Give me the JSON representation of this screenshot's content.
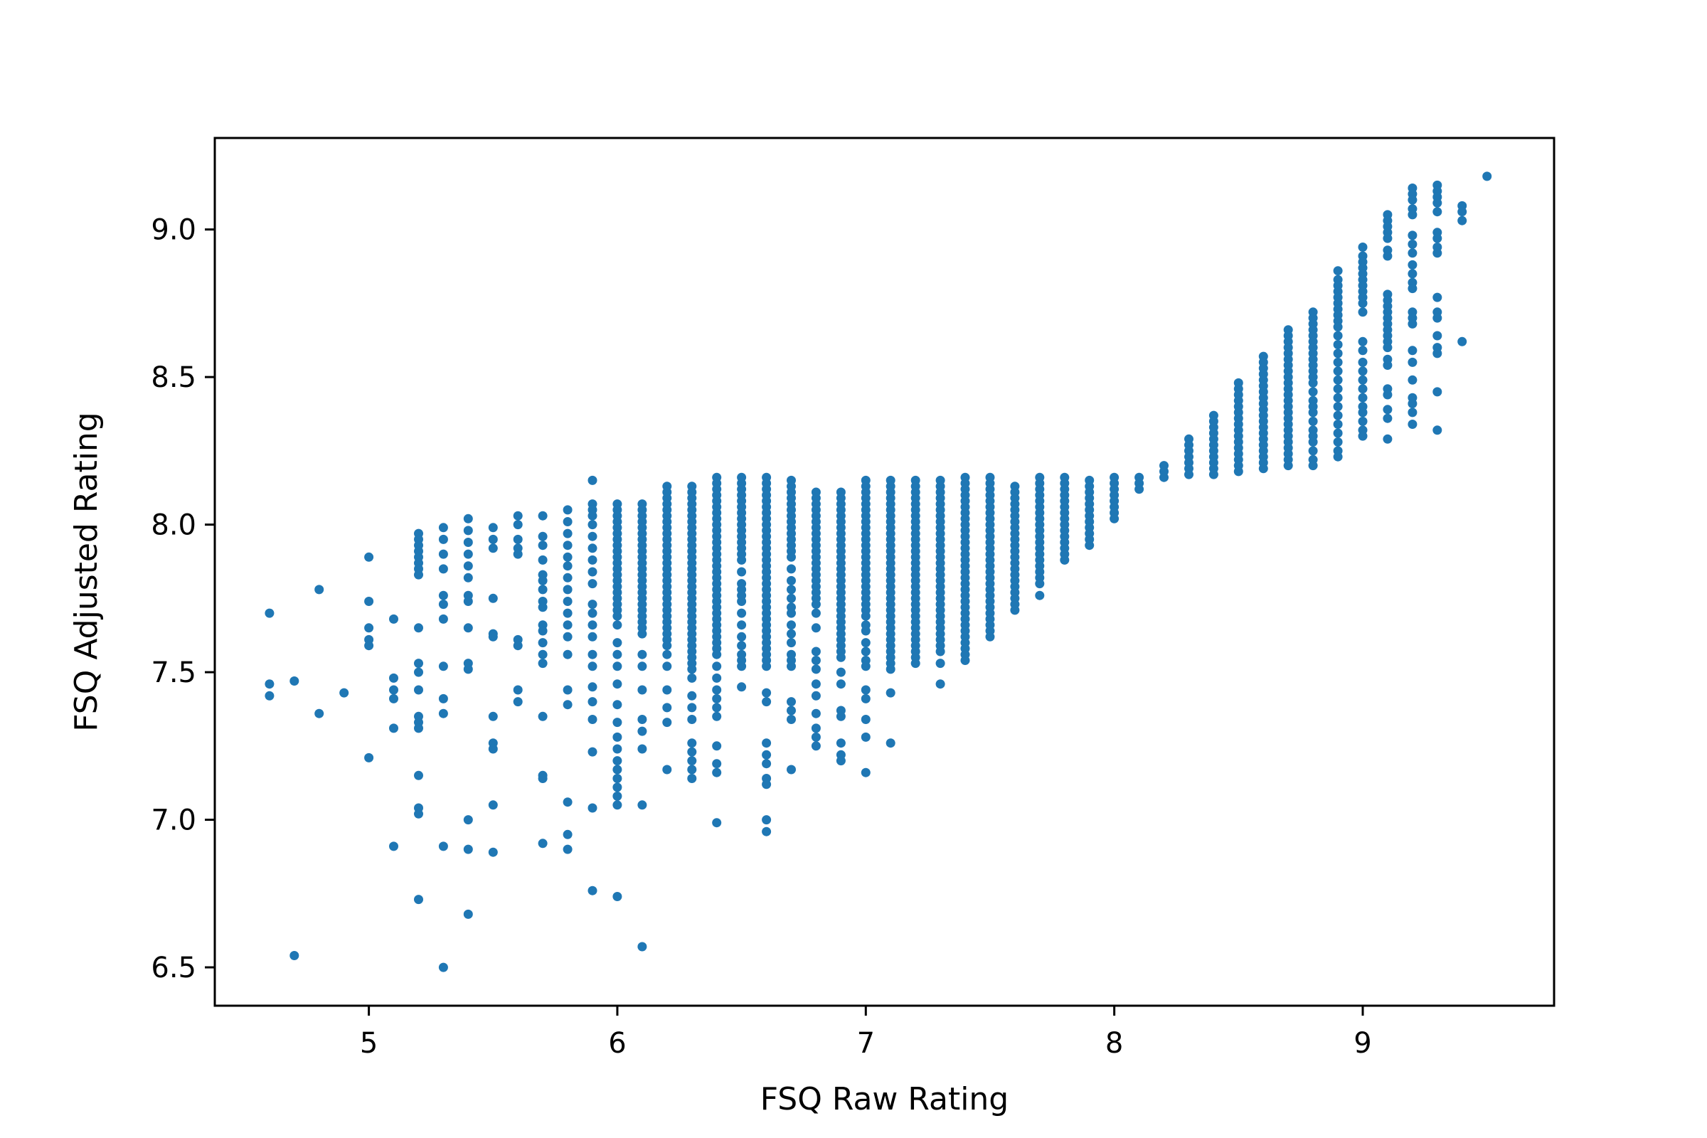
{
  "chart_data": {
    "type": "scatter",
    "title": "",
    "xlabel": "FSQ Raw Rating",
    "ylabel": "FSQ Adjusted Rating",
    "xlim": [
      4.38,
      9.77
    ],
    "ylim": [
      6.37,
      9.31
    ],
    "xticks": [
      5,
      6,
      7,
      8,
      9
    ],
    "xtick_labels": [
      "5",
      "6",
      "7",
      "8",
      "9"
    ],
    "yticks": [
      6.5,
      7.0,
      7.5,
      8.0,
      8.5,
      9.0
    ],
    "ytick_labels": [
      "6.5",
      "7.0",
      "7.5",
      "8.0",
      "8.5",
      "9.0"
    ],
    "grid": false,
    "legend": "none",
    "marker_color": "#1f77b4",
    "columns": [
      {
        "x": 4.6,
        "y": [
          7.7,
          7.46,
          7.42
        ]
      },
      {
        "x": 4.7,
        "y": [
          7.47,
          6.54
        ]
      },
      {
        "x": 4.8,
        "y": [
          7.78,
          7.36
        ]
      },
      {
        "x": 4.9,
        "y": [
          7.43
        ]
      },
      {
        "x": 5.0,
        "y": [
          7.89,
          7.74,
          7.65,
          7.61,
          7.59,
          7.21
        ]
      },
      {
        "x": 5.1,
        "y": [
          7.68,
          7.48,
          7.44,
          7.41,
          7.31,
          6.91
        ]
      },
      {
        "x": 5.2,
        "y": [
          7.97,
          7.95,
          7.93,
          7.91,
          7.89,
          7.87,
          7.85,
          7.83,
          7.65,
          7.53,
          7.5,
          7.44,
          7.35,
          7.33,
          7.31,
          7.15,
          7.04,
          7.02,
          6.73
        ]
      },
      {
        "x": 5.3,
        "y": [
          7.99,
          7.95,
          7.9,
          7.85,
          7.76,
          7.73,
          7.68,
          7.52,
          7.41,
          7.36,
          6.91,
          6.5
        ]
      },
      {
        "x": 5.4,
        "y": [
          8.02,
          7.98,
          7.94,
          7.9,
          7.86,
          7.82,
          7.76,
          7.74,
          7.65,
          7.53,
          7.51,
          7.0,
          6.9,
          6.68
        ]
      },
      {
        "x": 5.5,
        "y": [
          7.99,
          7.95,
          7.92,
          7.75,
          7.63,
          7.62,
          7.35,
          7.26,
          7.24,
          7.05,
          6.89
        ]
      },
      {
        "x": 5.6,
        "y": [
          8.03,
          8.0,
          7.95,
          7.92,
          7.9,
          7.61,
          7.59,
          7.44,
          7.4
        ]
      },
      {
        "x": 5.7,
        "y": [
          8.03,
          7.96,
          7.93,
          7.88,
          7.83,
          7.81,
          7.78,
          7.74,
          7.72,
          7.66,
          7.64,
          7.6,
          7.56,
          7.53,
          7.35,
          7.15,
          7.14,
          6.92
        ]
      },
      {
        "x": 5.8,
        "y": [
          8.05,
          8.01,
          7.97,
          7.93,
          7.89,
          7.86,
          7.82,
          7.78,
          7.74,
          7.7,
          7.66,
          7.62,
          7.56,
          7.44,
          7.39,
          7.06,
          6.95,
          6.9
        ]
      },
      {
        "x": 5.9,
        "y": [
          8.15,
          8.07,
          8.05,
          8.03,
          8.0,
          7.96,
          7.92,
          7.88,
          7.84,
          7.8,
          7.73,
          7.7,
          7.66,
          7.62,
          7.56,
          7.52,
          7.45,
          7.4,
          7.34,
          7.23,
          7.04,
          6.76
        ]
      },
      {
        "x": 6.0,
        "y": [
          8.07,
          8.05,
          8.03,
          8.01,
          7.99,
          7.97,
          7.95,
          7.93,
          7.91,
          7.89,
          7.87,
          7.85,
          7.83,
          7.81,
          7.79,
          7.77,
          7.75,
          7.73,
          7.71,
          7.69,
          7.66,
          7.6,
          7.56,
          7.52,
          7.46,
          7.39,
          7.33,
          7.28,
          7.24,
          7.2,
          7.17,
          7.14,
          7.11,
          7.08,
          7.05,
          6.74
        ]
      },
      {
        "x": 6.1,
        "y": [
          8.07,
          8.05,
          8.03,
          8.01,
          7.99,
          7.97,
          7.95,
          7.93,
          7.91,
          7.89,
          7.87,
          7.85,
          7.83,
          7.81,
          7.79,
          7.77,
          7.75,
          7.73,
          7.71,
          7.69,
          7.67,
          7.65,
          7.63,
          7.56,
          7.52,
          7.44,
          7.34,
          7.3,
          7.24,
          7.05,
          6.57
        ]
      },
      {
        "x": 6.2,
        "y": [
          8.13,
          8.11,
          8.09,
          8.07,
          8.05,
          8.03,
          8.01,
          7.99,
          7.97,
          7.95,
          7.93,
          7.91,
          7.89,
          7.87,
          7.85,
          7.83,
          7.81,
          7.79,
          7.77,
          7.75,
          7.73,
          7.71,
          7.69,
          7.67,
          7.65,
          7.63,
          7.61,
          7.59,
          7.56,
          7.52,
          7.44,
          7.38,
          7.33,
          7.17
        ]
      },
      {
        "x": 6.3,
        "y": [
          8.13,
          8.11,
          8.09,
          8.07,
          8.05,
          8.03,
          8.01,
          7.99,
          7.97,
          7.95,
          7.93,
          7.91,
          7.89,
          7.87,
          7.85,
          7.83,
          7.81,
          7.79,
          7.77,
          7.75,
          7.73,
          7.71,
          7.69,
          7.67,
          7.65,
          7.63,
          7.61,
          7.59,
          7.57,
          7.55,
          7.53,
          7.51,
          7.48,
          7.42,
          7.38,
          7.34,
          7.26,
          7.23,
          7.2,
          7.17,
          7.14
        ]
      },
      {
        "x": 6.4,
        "y": [
          8.16,
          8.14,
          8.12,
          8.1,
          8.08,
          8.06,
          8.04,
          8.02,
          8.0,
          7.98,
          7.96,
          7.94,
          7.92,
          7.9,
          7.88,
          7.86,
          7.84,
          7.82,
          7.8,
          7.78,
          7.76,
          7.74,
          7.72,
          7.7,
          7.68,
          7.66,
          7.64,
          7.62,
          7.6,
          7.58,
          7.56,
          7.52,
          7.48,
          7.44,
          7.41,
          7.38,
          7.35,
          7.25,
          7.19,
          7.16,
          6.99
        ]
      },
      {
        "x": 6.5,
        "y": [
          8.16,
          8.14,
          8.12,
          8.1,
          8.08,
          8.06,
          8.04,
          8.02,
          8.0,
          7.98,
          7.96,
          7.94,
          7.92,
          7.9,
          7.88,
          7.84,
          7.8,
          7.78,
          7.76,
          7.74,
          7.7,
          7.66,
          7.62,
          7.59,
          7.56,
          7.54,
          7.52,
          7.45
        ]
      },
      {
        "x": 6.6,
        "y": [
          8.16,
          8.14,
          8.12,
          8.1,
          8.08,
          8.06,
          8.04,
          8.02,
          8.0,
          7.98,
          7.96,
          7.94,
          7.92,
          7.9,
          7.88,
          7.86,
          7.84,
          7.82,
          7.8,
          7.78,
          7.76,
          7.74,
          7.72,
          7.7,
          7.68,
          7.66,
          7.64,
          7.62,
          7.6,
          7.58,
          7.56,
          7.54,
          7.52,
          7.43,
          7.4,
          7.26,
          7.22,
          7.19,
          7.14,
          7.12,
          7.0,
          6.96
        ]
      },
      {
        "x": 6.7,
        "y": [
          8.15,
          8.13,
          8.11,
          8.09,
          8.07,
          8.05,
          8.03,
          8.01,
          7.99,
          7.97,
          7.95,
          7.93,
          7.91,
          7.89,
          7.85,
          7.81,
          7.78,
          7.75,
          7.72,
          7.7,
          7.66,
          7.63,
          7.6,
          7.56,
          7.54,
          7.52,
          7.4,
          7.37,
          7.34,
          7.17
        ]
      },
      {
        "x": 6.8,
        "y": [
          8.11,
          8.09,
          8.07,
          8.05,
          8.03,
          8.01,
          7.99,
          7.97,
          7.95,
          7.93,
          7.91,
          7.89,
          7.87,
          7.85,
          7.83,
          7.81,
          7.79,
          7.77,
          7.75,
          7.73,
          7.7,
          7.65,
          7.57,
          7.54,
          7.51,
          7.46,
          7.42,
          7.36,
          7.31,
          7.28,
          7.25
        ]
      },
      {
        "x": 6.9,
        "y": [
          8.11,
          8.09,
          8.07,
          8.05,
          8.03,
          8.01,
          7.99,
          7.97,
          7.95,
          7.93,
          7.91,
          7.89,
          7.87,
          7.85,
          7.83,
          7.81,
          7.79,
          7.77,
          7.75,
          7.73,
          7.71,
          7.69,
          7.67,
          7.65,
          7.63,
          7.61,
          7.59,
          7.57,
          7.55,
          7.5,
          7.46,
          7.37,
          7.35,
          7.26,
          7.22,
          7.2
        ]
      },
      {
        "x": 7.0,
        "y": [
          8.15,
          8.13,
          8.11,
          8.09,
          8.07,
          8.05,
          8.03,
          8.01,
          7.99,
          7.97,
          7.95,
          7.93,
          7.91,
          7.89,
          7.87,
          7.85,
          7.83,
          7.81,
          7.79,
          7.77,
          7.75,
          7.73,
          7.71,
          7.69,
          7.66,
          7.64,
          7.6,
          7.57,
          7.54,
          7.52,
          7.44,
          7.41,
          7.34,
          7.28,
          7.16
        ]
      },
      {
        "x": 7.1,
        "y": [
          8.15,
          8.13,
          8.11,
          8.09,
          8.07,
          8.05,
          8.03,
          8.01,
          7.99,
          7.97,
          7.95,
          7.93,
          7.91,
          7.89,
          7.87,
          7.85,
          7.83,
          7.81,
          7.79,
          7.77,
          7.75,
          7.73,
          7.71,
          7.69,
          7.67,
          7.65,
          7.63,
          7.61,
          7.59,
          7.57,
          7.55,
          7.53,
          7.51,
          7.43,
          7.26
        ]
      },
      {
        "x": 7.2,
        "y": [
          8.15,
          8.13,
          8.11,
          8.09,
          8.07,
          8.05,
          8.03,
          8.01,
          7.99,
          7.97,
          7.95,
          7.93,
          7.91,
          7.89,
          7.87,
          7.85,
          7.83,
          7.81,
          7.79,
          7.77,
          7.75,
          7.73,
          7.71,
          7.69,
          7.67,
          7.65,
          7.63,
          7.61,
          7.59,
          7.57,
          7.55,
          7.53
        ]
      },
      {
        "x": 7.3,
        "y": [
          8.15,
          8.13,
          8.11,
          8.09,
          8.07,
          8.05,
          8.03,
          8.01,
          7.99,
          7.97,
          7.95,
          7.93,
          7.91,
          7.89,
          7.87,
          7.85,
          7.83,
          7.81,
          7.79,
          7.77,
          7.75,
          7.73,
          7.71,
          7.69,
          7.67,
          7.65,
          7.63,
          7.61,
          7.59,
          7.57,
          7.53,
          7.46
        ]
      },
      {
        "x": 7.4,
        "y": [
          8.16,
          8.14,
          8.12,
          8.1,
          8.08,
          8.06,
          8.04,
          8.02,
          8.0,
          7.98,
          7.96,
          7.94,
          7.92,
          7.9,
          7.88,
          7.86,
          7.84,
          7.82,
          7.8,
          7.78,
          7.76,
          7.74,
          7.72,
          7.7,
          7.68,
          7.66,
          7.64,
          7.62,
          7.6,
          7.58,
          7.56,
          7.54
        ]
      },
      {
        "x": 7.5,
        "y": [
          8.16,
          8.14,
          8.12,
          8.1,
          8.08,
          8.06,
          8.04,
          8.02,
          8.0,
          7.98,
          7.96,
          7.94,
          7.92,
          7.9,
          7.88,
          7.86,
          7.84,
          7.82,
          7.8,
          7.78,
          7.76,
          7.74,
          7.72,
          7.7,
          7.68,
          7.66,
          7.64,
          7.62
        ]
      },
      {
        "x": 7.6,
        "y": [
          8.13,
          8.11,
          8.09,
          8.07,
          8.05,
          8.03,
          8.01,
          7.99,
          7.97,
          7.95,
          7.93,
          7.91,
          7.89,
          7.87,
          7.85,
          7.83,
          7.81,
          7.79,
          7.77,
          7.75,
          7.73,
          7.71
        ]
      },
      {
        "x": 7.7,
        "y": [
          8.16,
          8.14,
          8.12,
          8.1,
          8.08,
          8.06,
          8.04,
          8.02,
          8.0,
          7.98,
          7.96,
          7.94,
          7.92,
          7.9,
          7.88,
          7.86,
          7.84,
          7.82,
          7.8,
          7.76
        ]
      },
      {
        "x": 7.8,
        "y": [
          8.16,
          8.14,
          8.12,
          8.1,
          8.08,
          8.06,
          8.04,
          8.02,
          8.0,
          7.98,
          7.96,
          7.94,
          7.92,
          7.9,
          7.88
        ]
      },
      {
        "x": 7.9,
        "y": [
          8.15,
          8.13,
          8.11,
          8.09,
          8.07,
          8.05,
          8.03,
          8.01,
          7.99,
          7.97,
          7.95,
          7.93
        ]
      },
      {
        "x": 8.0,
        "y": [
          8.16,
          8.14,
          8.12,
          8.1,
          8.08,
          8.06,
          8.04,
          8.02
        ]
      },
      {
        "x": 8.1,
        "y": [
          8.16,
          8.14,
          8.12
        ]
      },
      {
        "x": 8.2,
        "y": [
          8.2,
          8.18,
          8.16
        ]
      },
      {
        "x": 8.3,
        "y": [
          8.29,
          8.27,
          8.25,
          8.23,
          8.21,
          8.19,
          8.17
        ]
      },
      {
        "x": 8.4,
        "y": [
          8.37,
          8.35,
          8.33,
          8.31,
          8.29,
          8.27,
          8.25,
          8.23,
          8.21,
          8.19,
          8.17
        ]
      },
      {
        "x": 8.5,
        "y": [
          8.48,
          8.46,
          8.44,
          8.42,
          8.4,
          8.38,
          8.36,
          8.34,
          8.32,
          8.3,
          8.28,
          8.26,
          8.24,
          8.22,
          8.2,
          8.18
        ]
      },
      {
        "x": 8.6,
        "y": [
          8.57,
          8.55,
          8.53,
          8.51,
          8.49,
          8.47,
          8.45,
          8.43,
          8.41,
          8.39,
          8.37,
          8.35,
          8.33,
          8.31,
          8.29,
          8.27,
          8.25,
          8.23,
          8.21,
          8.19
        ]
      },
      {
        "x": 8.7,
        "y": [
          8.66,
          8.64,
          8.62,
          8.6,
          8.58,
          8.56,
          8.54,
          8.52,
          8.5,
          8.48,
          8.46,
          8.44,
          8.42,
          8.4,
          8.38,
          8.36,
          8.34,
          8.32,
          8.3,
          8.28,
          8.26,
          8.24,
          8.22,
          8.2
        ]
      },
      {
        "x": 8.8,
        "y": [
          8.72,
          8.7,
          8.68,
          8.66,
          8.64,
          8.62,
          8.6,
          8.58,
          8.56,
          8.54,
          8.52,
          8.5,
          8.48,
          8.45,
          8.42,
          8.4,
          8.38,
          8.35,
          8.32,
          8.3,
          8.28,
          8.25,
          8.22,
          8.2
        ]
      },
      {
        "x": 8.9,
        "y": [
          8.86,
          8.83,
          8.81,
          8.79,
          8.77,
          8.75,
          8.73,
          8.71,
          8.69,
          8.67,
          8.64,
          8.61,
          8.58,
          8.55,
          8.52,
          8.49,
          8.46,
          8.43,
          8.4,
          8.37,
          8.34,
          8.31,
          8.28,
          8.25,
          8.23
        ]
      },
      {
        "x": 9.0,
        "y": [
          8.94,
          8.91,
          8.89,
          8.87,
          8.85,
          8.83,
          8.81,
          8.79,
          8.77,
          8.75,
          8.72,
          8.62,
          8.59,
          8.55,
          8.52,
          8.49,
          8.46,
          8.43,
          8.4,
          8.38,
          8.35,
          8.32,
          8.3
        ]
      },
      {
        "x": 9.1,
        "y": [
          9.05,
          9.03,
          9.01,
          8.99,
          8.97,
          8.93,
          8.91,
          8.78,
          8.76,
          8.74,
          8.72,
          8.7,
          8.68,
          8.66,
          8.64,
          8.62,
          8.6,
          8.56,
          8.54,
          8.46,
          8.44,
          8.39,
          8.36,
          8.29
        ]
      },
      {
        "x": 9.2,
        "y": [
          9.14,
          9.12,
          9.1,
          9.07,
          9.05,
          8.98,
          8.95,
          8.92,
          8.88,
          8.85,
          8.82,
          8.8,
          8.72,
          8.7,
          8.68,
          8.59,
          8.55,
          8.49,
          8.43,
          8.41,
          8.38,
          8.34
        ]
      },
      {
        "x": 9.3,
        "y": [
          9.15,
          9.13,
          9.11,
          9.09,
          9.06,
          8.99,
          8.97,
          8.94,
          8.92,
          8.77,
          8.72,
          8.7,
          8.64,
          8.6,
          8.58,
          8.45,
          8.32
        ]
      },
      {
        "x": 9.4,
        "y": [
          9.08,
          9.06,
          9.03,
          8.62
        ]
      },
      {
        "x": 9.5,
        "y": [
          9.18
        ]
      }
    ]
  }
}
